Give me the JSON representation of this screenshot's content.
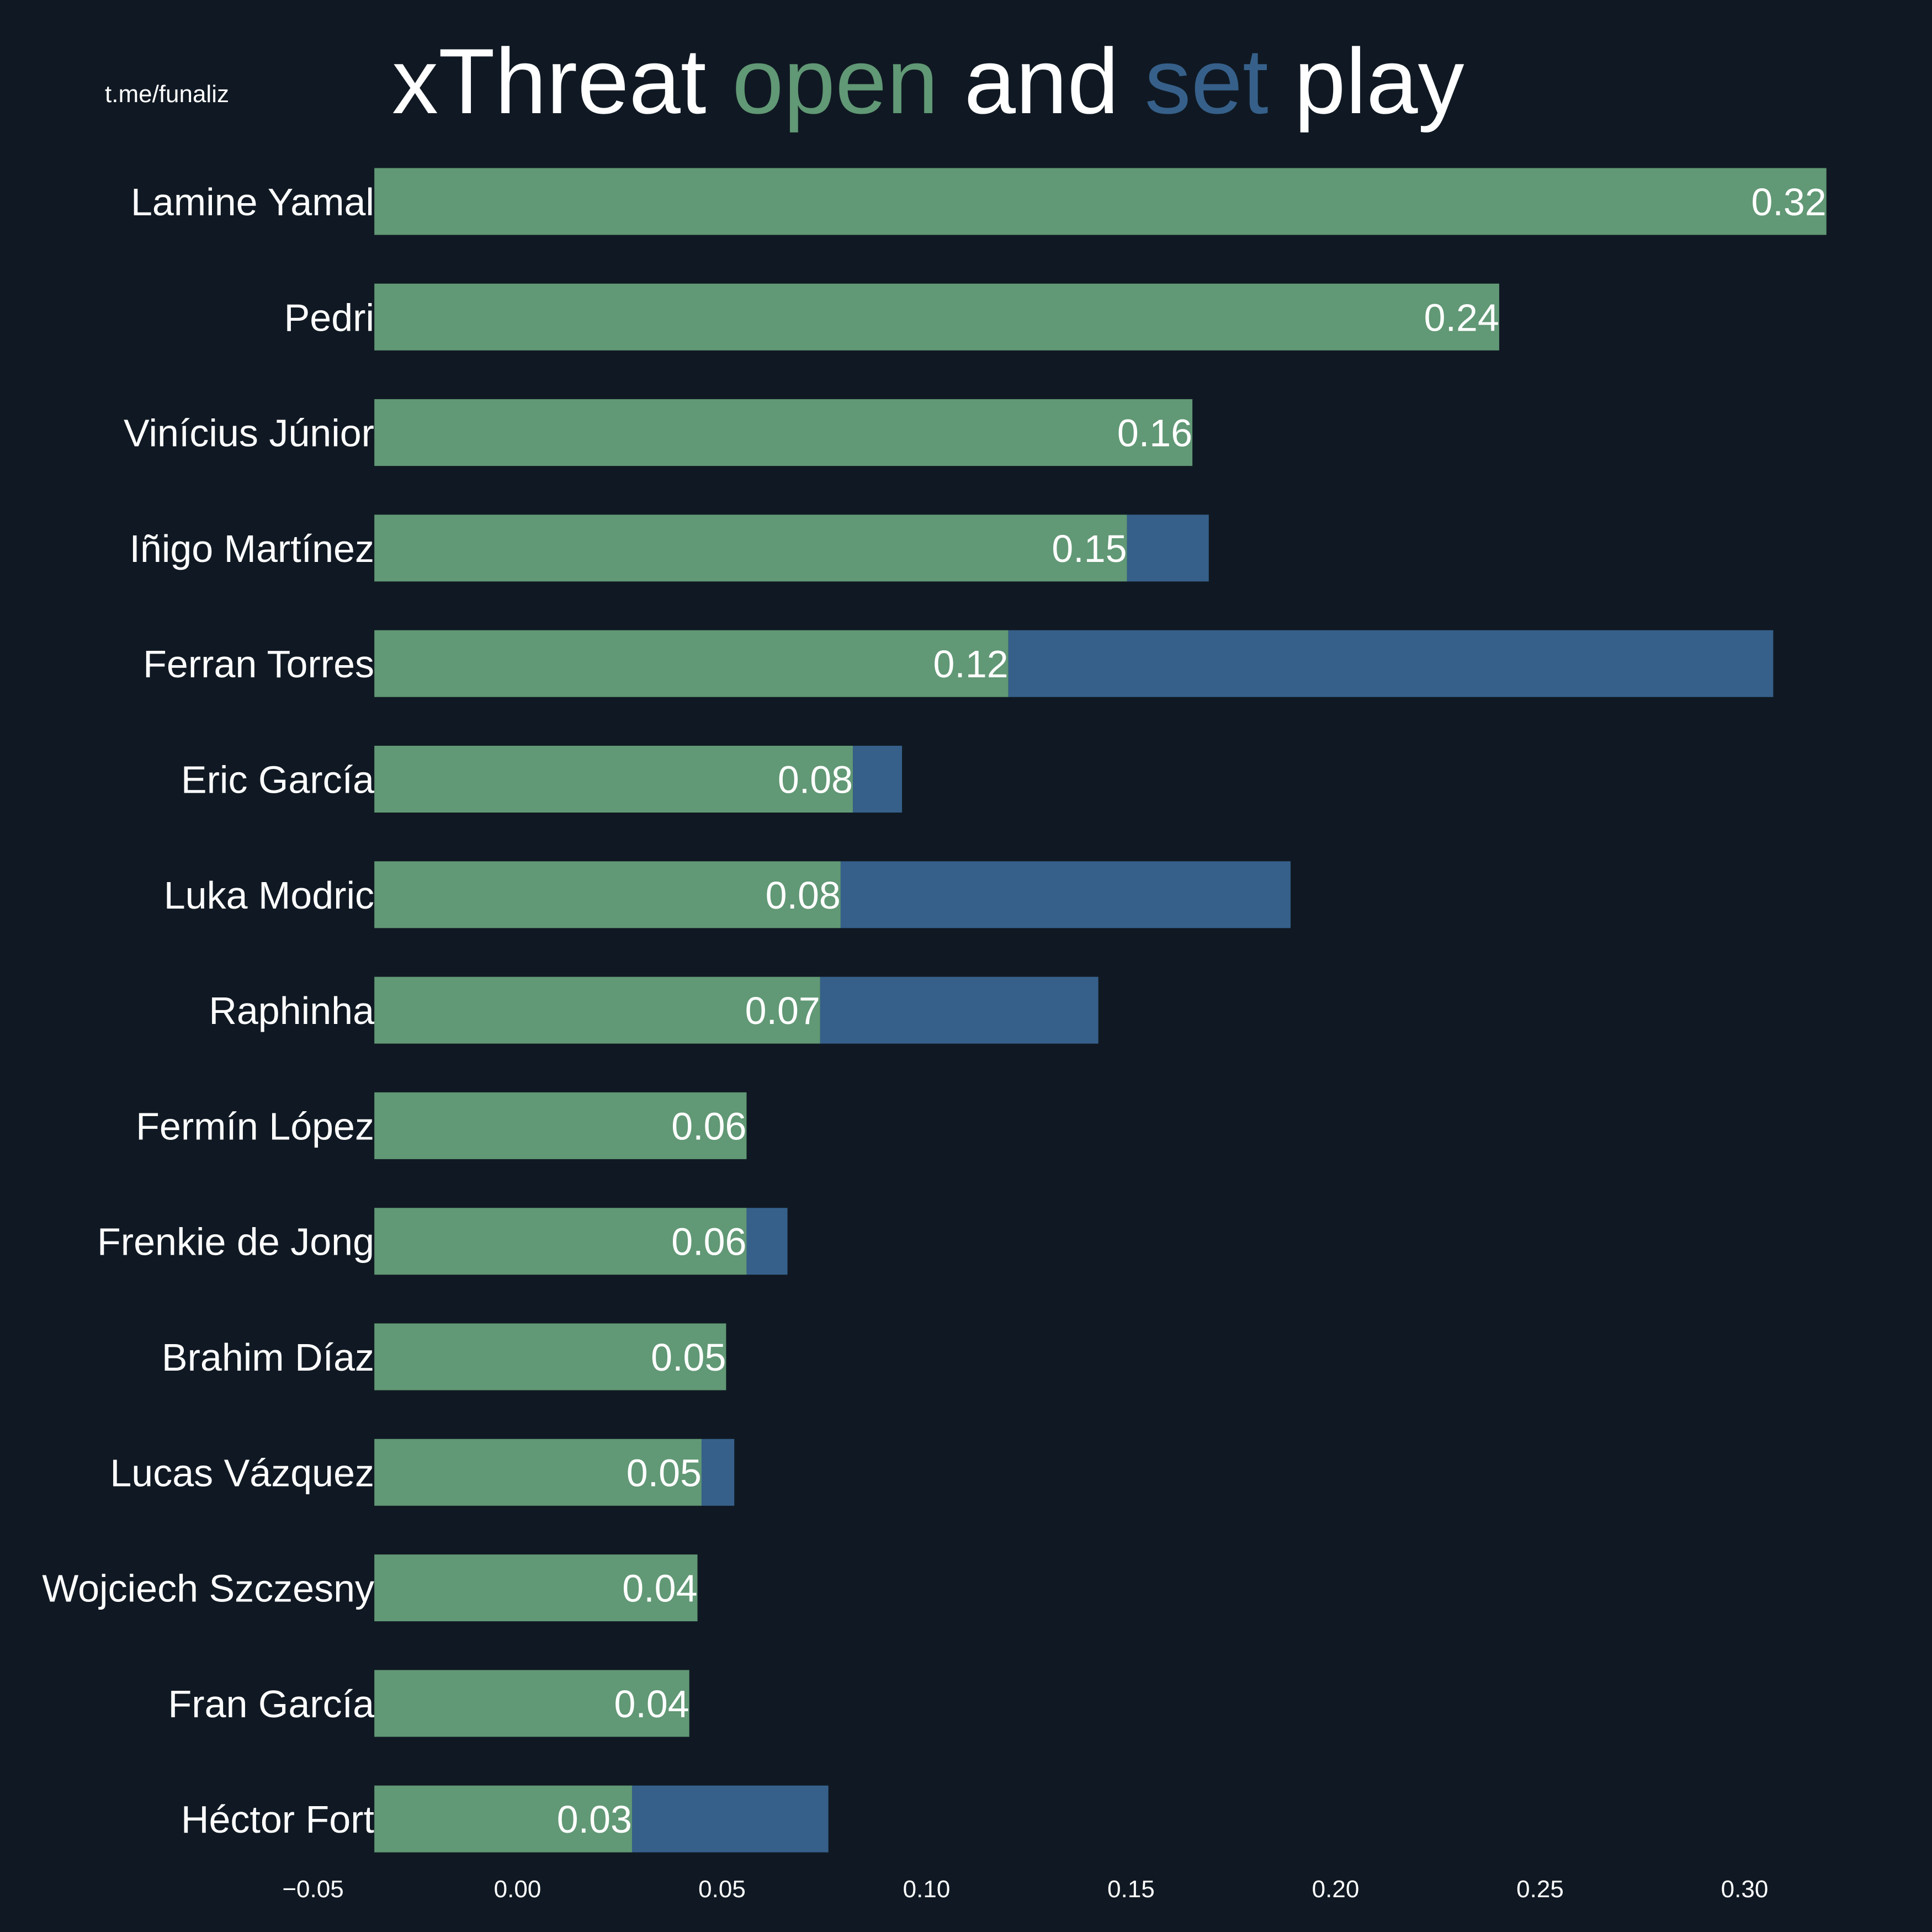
{
  "watermark": "t.me/funaliz",
  "title": {
    "parts": [
      {
        "text": "xThreat ",
        "color": "#ffffff"
      },
      {
        "text": "open",
        "color": "#619875"
      },
      {
        "text": " and ",
        "color": "#ffffff"
      },
      {
        "text": "set",
        "color": "#36608a"
      },
      {
        "text": " play",
        "color": "#ffffff"
      }
    ]
  },
  "colors": {
    "background": "#101923",
    "open": "#619875",
    "set": "#36608a",
    "text": "#ffffff"
  },
  "chart_data": {
    "type": "bar",
    "orientation": "horizontal",
    "stacked": true,
    "categories": [
      "Lamine Yamal",
      "Pedri",
      "Vinícius Júnior",
      "Iñigo Martínez",
      "Ferran Torres",
      "Eric García",
      "Luka Modric",
      "Raphinha",
      "Fermín López",
      "Frenkie de Jong",
      "Brahim Díaz",
      "Lucas Vázquez",
      "Wojciech Szczesny",
      "Fran García",
      "Héctor Fort"
    ],
    "series": [
      {
        "key": "open",
        "color": "#619875",
        "values": [
          0.32,
          0.24,
          0.165,
          0.149,
          0.12,
          0.082,
          0.079,
          0.074,
          0.056,
          0.056,
          0.051,
          0.045,
          0.044,
          0.042,
          0.028
        ]
      },
      {
        "key": "set",
        "color": "#36608a",
        "values": [
          0.0,
          0.0,
          0.0,
          0.02,
          0.187,
          0.012,
          0.11,
          0.068,
          0.0,
          0.01,
          0.0,
          0.008,
          0.0,
          0.0,
          0.048
        ]
      }
    ],
    "data_labels": [
      "0.32",
      "0.24",
      "0.16",
      "0.15",
      "0.12",
      "0.08",
      "0.08",
      "0.07",
      "0.06",
      "0.06",
      "0.05",
      "0.05",
      "0.04",
      "0.04",
      "0.03"
    ],
    "xlim": [
      -0.05,
      0.33
    ],
    "xticks": [
      -0.05,
      0.0,
      0.05,
      0.1,
      0.15,
      0.2,
      0.25,
      0.3
    ],
    "xtick_labels": [
      "−0.05",
      "0.00",
      "0.05",
      "0.10",
      "0.15",
      "0.20",
      "0.25",
      "0.30"
    ],
    "bar_base": -0.035,
    "grid": false,
    "legend": "none"
  }
}
